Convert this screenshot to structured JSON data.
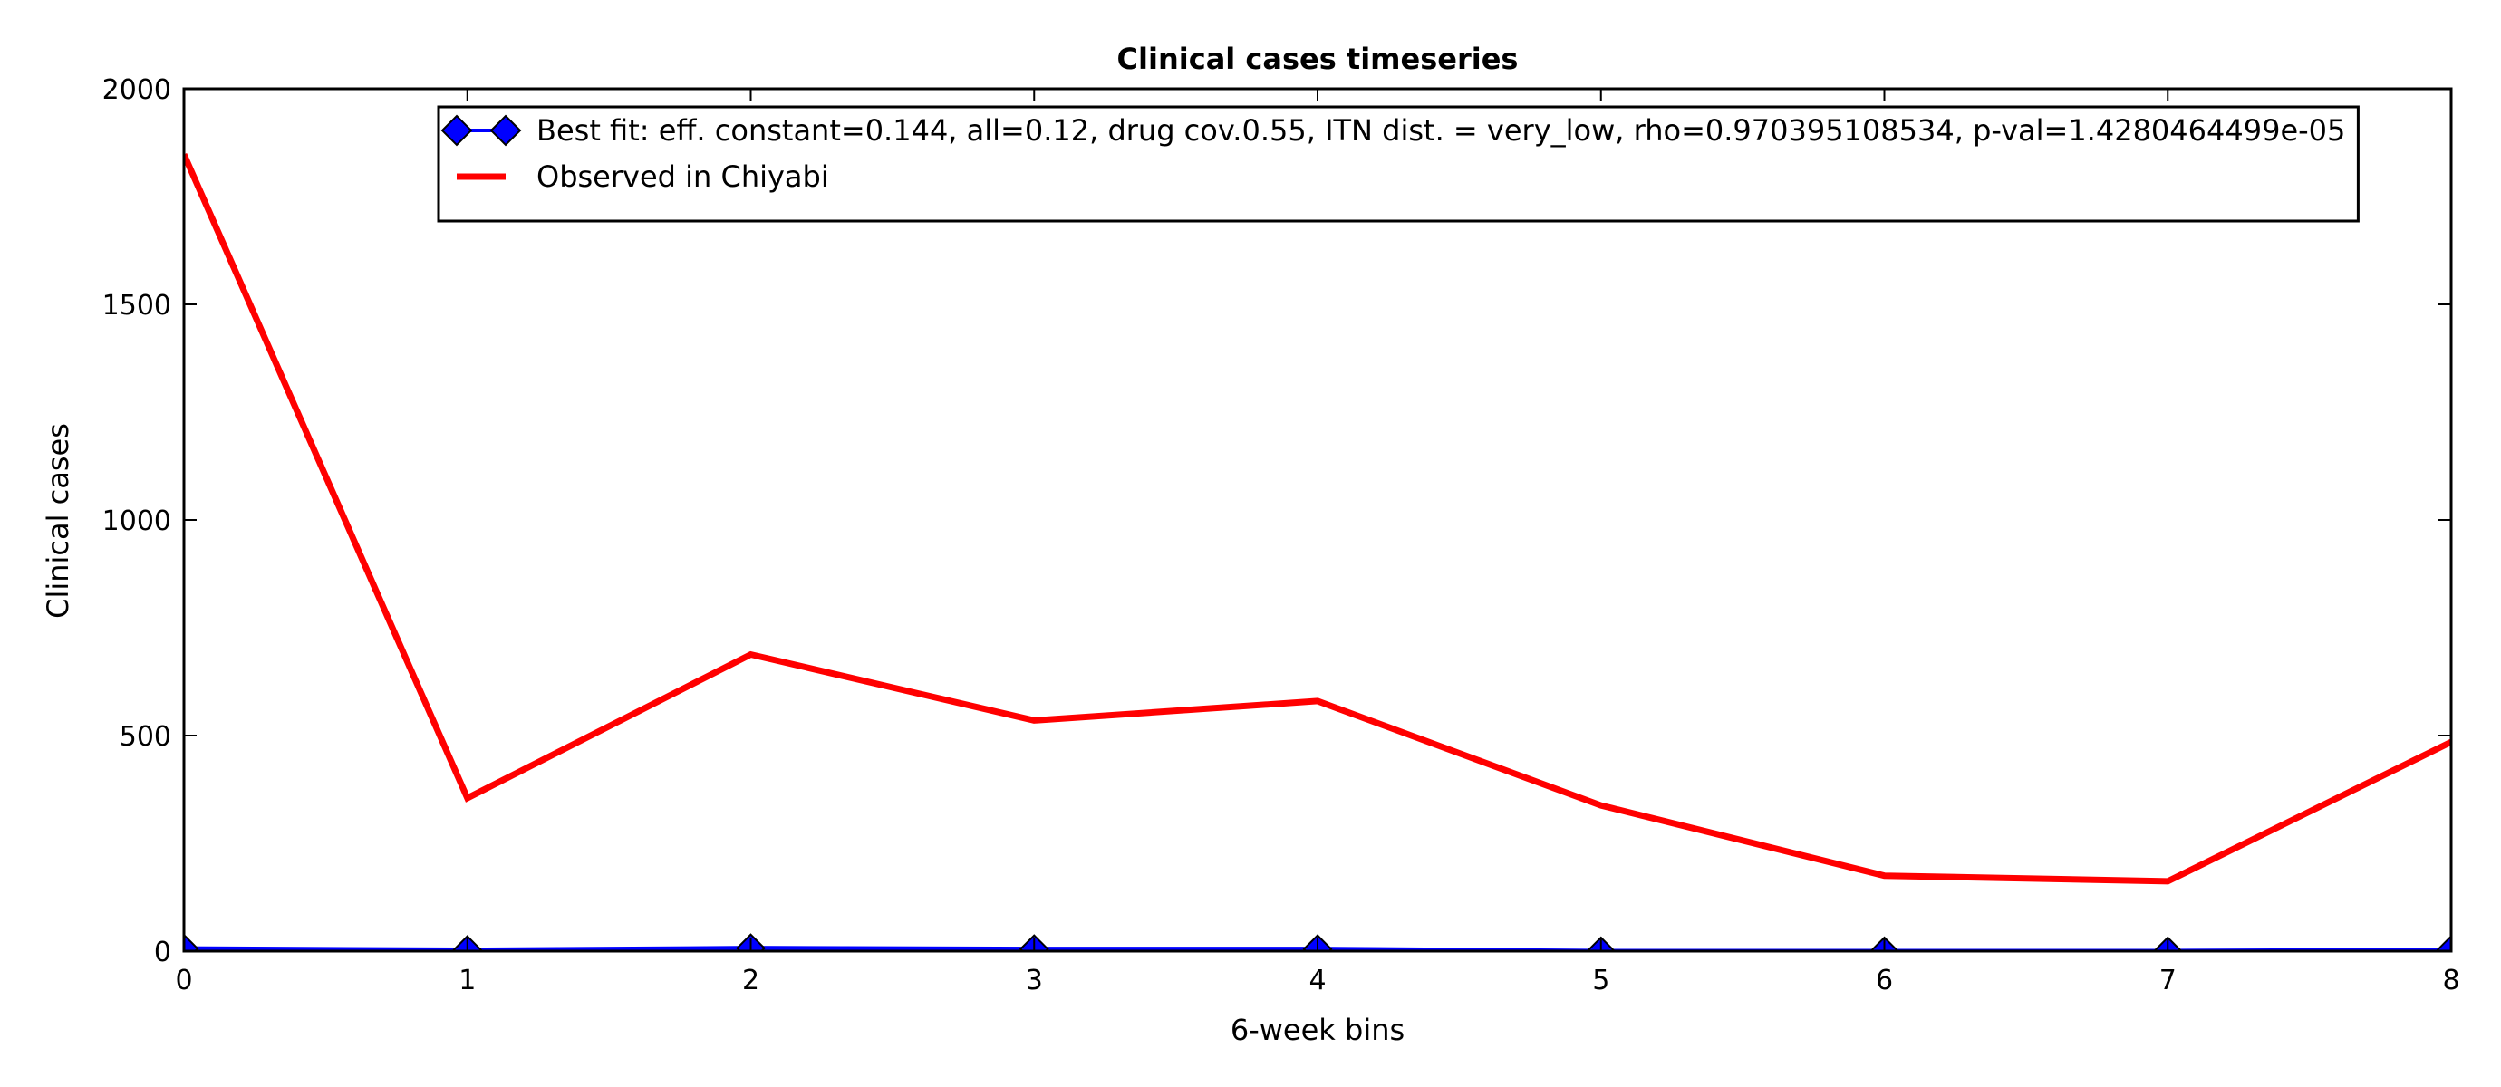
{
  "chart_data": {
    "type": "line",
    "title": "Clinical cases timeseries",
    "xlabel": "6-week bins",
    "ylabel": "Clinical cases",
    "xlim": [
      0,
      8
    ],
    "ylim": [
      0,
      2000
    ],
    "xticks": [
      0,
      1,
      2,
      3,
      4,
      5,
      6,
      7,
      8
    ],
    "yticks": [
      0,
      500,
      1000,
      1500,
      2000
    ],
    "grid": false,
    "legend_position": "top-right",
    "x": [
      0,
      1,
      2,
      3,
      4,
      5,
      6,
      7,
      8
    ],
    "series": [
      {
        "name": "Best fit: eff. constant=0.144, all=0.12, drug cov.0.55, ITN dist. = very_low, rho=0.970395108534, p-val=1.4280464499e-05",
        "values": [
          6,
          3,
          7,
          5,
          5,
          0,
          0,
          0,
          3
        ],
        "color": "#0000ff",
        "marker": "diamond",
        "marker_color": "#0000ff"
      },
      {
        "name": "Observed in Chiyabi",
        "values": [
          1848,
          355,
          688,
          535,
          580,
          338,
          175,
          162,
          485
        ],
        "color": "#ff0000",
        "marker": "none"
      }
    ]
  }
}
